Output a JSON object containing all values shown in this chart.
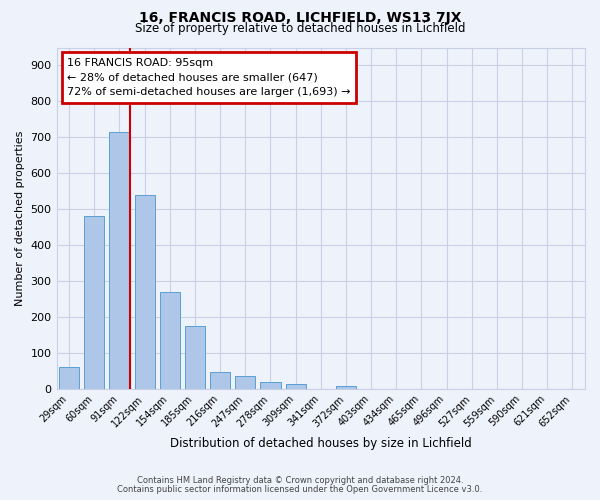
{
  "title1": "16, FRANCIS ROAD, LICHFIELD, WS13 7JX",
  "title2": "Size of property relative to detached houses in Lichfield",
  "xlabel": "Distribution of detached houses by size in Lichfield",
  "ylabel": "Number of detached properties",
  "footer1": "Contains HM Land Registry data © Crown copyright and database right 2024.",
  "footer2": "Contains public sector information licensed under the Open Government Licence v3.0.",
  "bar_labels": [
    "29sqm",
    "60sqm",
    "91sqm",
    "122sqm",
    "154sqm",
    "185sqm",
    "216sqm",
    "247sqm",
    "278sqm",
    "309sqm",
    "341sqm",
    "372sqm",
    "403sqm",
    "434sqm",
    "465sqm",
    "496sqm",
    "527sqm",
    "559sqm",
    "590sqm",
    "621sqm",
    "652sqm"
  ],
  "bar_values": [
    62,
    481,
    716,
    540,
    270,
    175,
    48,
    35,
    18,
    14,
    0,
    9,
    0,
    0,
    0,
    0,
    0,
    0,
    0,
    0,
    0
  ],
  "bar_color": "#aec6e8",
  "bar_edge_color": "#5a9fd4",
  "property_line_color": "#cc0000",
  "annotation_title": "16 FRANCIS ROAD: 95sqm",
  "annotation_line1": "← 28% of detached houses are smaller (647)",
  "annotation_line2": "72% of semi-detached houses are larger (1,693) →",
  "annotation_box_color": "#cc0000",
  "ylim": [
    0,
    950
  ],
  "yticks": [
    0,
    100,
    200,
    300,
    400,
    500,
    600,
    700,
    800,
    900
  ],
  "bg_color": "#eef2fb",
  "plot_bg_color": "#eef2fb",
  "grid_color": "#c8d0e8",
  "title1_fontsize": 10,
  "title2_fontsize": 8.5
}
